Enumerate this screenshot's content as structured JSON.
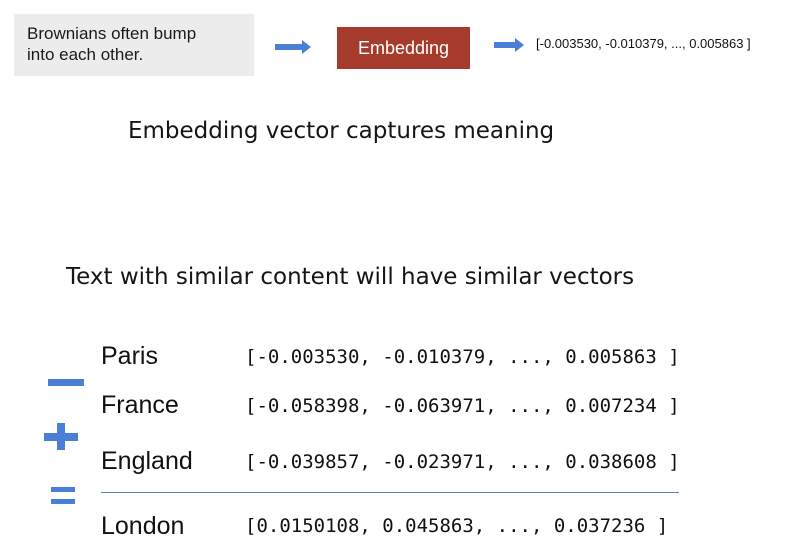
{
  "top_flow": {
    "input_lines": [
      "Brownians often bump",
      "into each other."
    ],
    "embedding_label": "Embedding",
    "output_vector": "[-0.003530, -0.010379, ..., 0.005863 ]"
  },
  "headings": {
    "captures": "Embedding vector captures meaning",
    "similar": "Text with similar content will have similar vectors"
  },
  "analogy": {
    "rows": [
      {
        "word": "Paris",
        "vector": "[-0.003530, -0.010379, ..., 0.005863 ]"
      },
      {
        "word": "France",
        "vector": "[-0.058398, -0.063971, ..., 0.007234 ]"
      },
      {
        "word": "England",
        "vector": "[-0.039857, -0.023971, ..., 0.038608 ]"
      },
      {
        "word": "London",
        "vector": "[0.0150108,  0.045863, ..., 0.037236 ]"
      }
    ],
    "operator_color": "#4a7fd6"
  },
  "colors": {
    "embedding_box": "#a63b2c",
    "input_box": "#ececec",
    "arrow": "#4a7fd6"
  }
}
